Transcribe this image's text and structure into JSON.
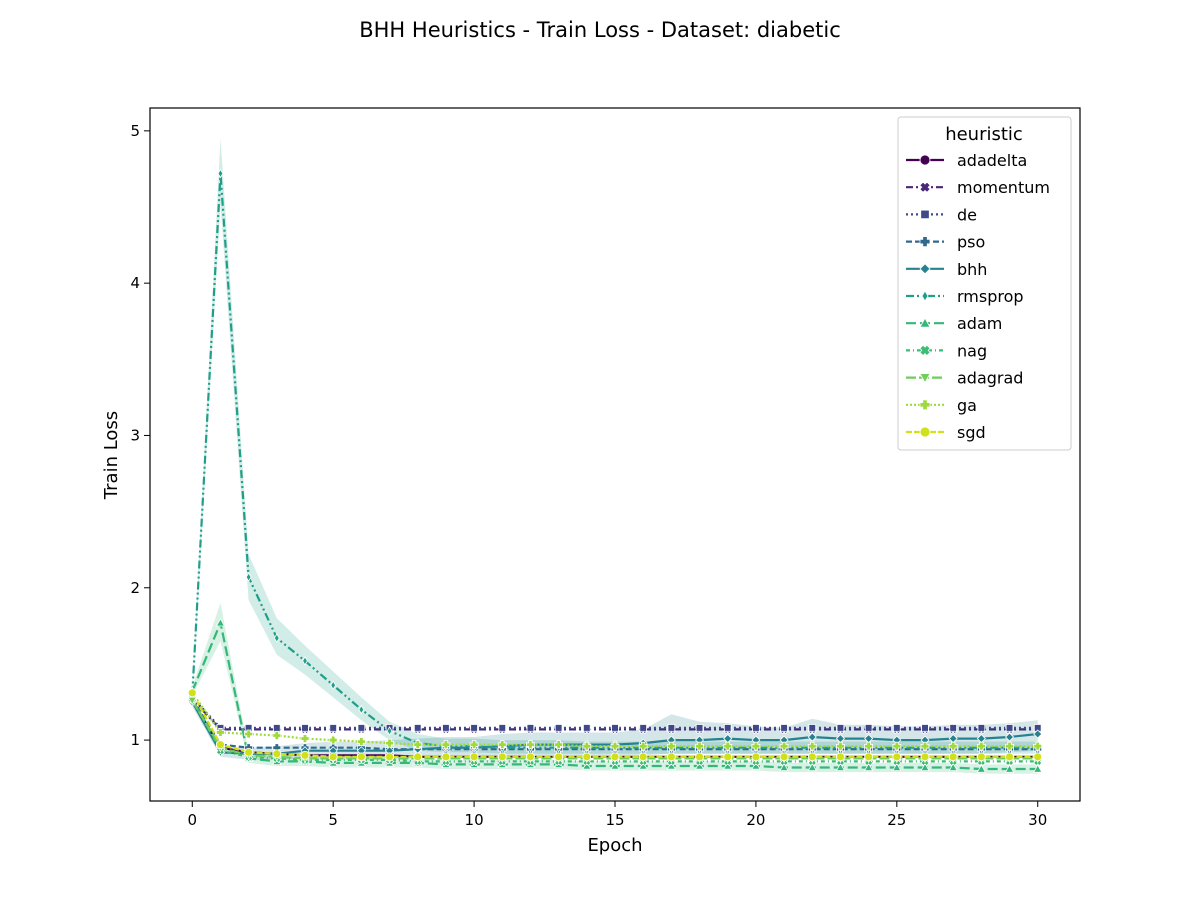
{
  "chart_data": {
    "type": "line",
    "title": "BHH Heuristics - Train Loss - Dataset: diabetic",
    "xlabel": "Epoch",
    "ylabel": "Train Loss",
    "xlim": [
      -1.5,
      31.5
    ],
    "ylim": [
      0.6,
      5.15
    ],
    "xticks": [
      0,
      5,
      10,
      15,
      20,
      25,
      30
    ],
    "yticks": [
      1,
      2,
      3,
      4,
      5
    ],
    "grid": false,
    "legend": {
      "title": "heuristic",
      "position": "top-right"
    },
    "x": [
      0,
      1,
      2,
      3,
      4,
      5,
      6,
      7,
      8,
      9,
      10,
      11,
      12,
      13,
      14,
      15,
      16,
      17,
      18,
      19,
      20,
      21,
      22,
      23,
      24,
      25,
      26,
      27,
      28,
      29,
      30
    ],
    "series": [
      {
        "name": "adadelta",
        "color": "#440154",
        "dash": "",
        "marker": "circle",
        "values": [
          1.26,
          0.95,
          0.92,
          0.91,
          0.9,
          0.9,
          0.9,
          0.9,
          0.89,
          0.89,
          0.89,
          0.89,
          0.89,
          0.89,
          0.89,
          0.89,
          0.89,
          0.89,
          0.89,
          0.89,
          0.89,
          0.89,
          0.89,
          0.89,
          0.89,
          0.89,
          0.89,
          0.89,
          0.89,
          0.89,
          0.89
        ]
      },
      {
        "name": "momentum",
        "color": "#482878",
        "dash": "7,3,2,3",
        "marker": "x",
        "values": [
          1.27,
          1.07,
          1.07,
          1.07,
          1.07,
          1.07,
          1.07,
          1.07,
          1.07,
          1.07,
          1.07,
          1.07,
          1.07,
          1.07,
          1.07,
          1.07,
          1.07,
          1.07,
          1.07,
          1.07,
          1.07,
          1.07,
          1.07,
          1.07,
          1.07,
          1.07,
          1.07,
          1.07,
          1.07,
          1.07,
          1.07
        ]
      },
      {
        "name": "de",
        "color": "#3e4989",
        "dash": "2,3",
        "marker": "square",
        "values": [
          1.28,
          1.08,
          1.08,
          1.08,
          1.08,
          1.08,
          1.08,
          1.08,
          1.08,
          1.08,
          1.08,
          1.08,
          1.08,
          1.08,
          1.08,
          1.08,
          1.08,
          1.08,
          1.08,
          1.08,
          1.08,
          1.08,
          1.08,
          1.08,
          1.08,
          1.08,
          1.08,
          1.08,
          1.08,
          1.08,
          1.08
        ]
      },
      {
        "name": "pso",
        "color": "#31688e",
        "dash": "6,3",
        "marker": "plus",
        "values": [
          1.27,
          0.97,
          0.95,
          0.95,
          0.95,
          0.95,
          0.95,
          0.94,
          0.94,
          0.94,
          0.94,
          0.94,
          0.94,
          0.94,
          0.94,
          0.94,
          0.94,
          0.94,
          0.94,
          0.94,
          0.94,
          0.94,
          0.94,
          0.94,
          0.94,
          0.94,
          0.94,
          0.94,
          0.94,
          0.94,
          0.94
        ]
      },
      {
        "name": "bhh",
        "color": "#26828e",
        "dash": "",
        "marker": "diamond",
        "values": [
          1.25,
          0.92,
          0.91,
          0.91,
          0.93,
          0.93,
          0.93,
          0.93,
          0.94,
          0.95,
          0.95,
          0.96,
          0.97,
          0.97,
          0.97,
          0.97,
          0.98,
          1.0,
          1.0,
          1.01,
          1.0,
          1.0,
          1.02,
          1.01,
          1.01,
          1.0,
          1.0,
          1.01,
          1.01,
          1.02,
          1.04
        ]
      },
      {
        "name": "rmsprop",
        "color": "#1f9e89",
        "dash": "8,3,2,3,2,3",
        "marker": "thin_diamond",
        "values": [
          1.3,
          4.72,
          2.07,
          1.67,
          1.52,
          1.36,
          1.2,
          1.06,
          0.98,
          0.96,
          0.96,
          0.95,
          0.95,
          0.95,
          0.95,
          0.95,
          0.95,
          0.95,
          0.95,
          0.95,
          0.95,
          0.95,
          0.95,
          0.95,
          0.95,
          0.95,
          0.95,
          0.95,
          0.95,
          0.95,
          0.95
        ]
      },
      {
        "name": "adam",
        "color": "#35b779",
        "dash": "10,4",
        "marker": "triangle",
        "values": [
          1.32,
          1.77,
          0.88,
          0.86,
          0.86,
          0.85,
          0.85,
          0.85,
          0.85,
          0.84,
          0.84,
          0.84,
          0.84,
          0.84,
          0.83,
          0.83,
          0.83,
          0.83,
          0.83,
          0.83,
          0.83,
          0.82,
          0.82,
          0.82,
          0.82,
          0.82,
          0.82,
          0.82,
          0.81,
          0.81,
          0.81
        ]
      },
      {
        "name": "nag",
        "color": "#3dbc74",
        "dash": "4,3,1,3",
        "marker": "x",
        "values": [
          1.27,
          0.93,
          0.89,
          0.88,
          0.87,
          0.87,
          0.87,
          0.87,
          0.86,
          0.86,
          0.86,
          0.86,
          0.86,
          0.86,
          0.86,
          0.86,
          0.86,
          0.86,
          0.86,
          0.86,
          0.86,
          0.86,
          0.86,
          0.86,
          0.86,
          0.86,
          0.86,
          0.86,
          0.86,
          0.86,
          0.86
        ]
      },
      {
        "name": "adagrad",
        "color": "#6ece58",
        "dash": "10,3,10,3",
        "marker": "triangle_down",
        "values": [
          1.26,
          0.95,
          0.9,
          0.89,
          0.88,
          0.88,
          0.88,
          0.88,
          0.88,
          0.88,
          0.88,
          0.88,
          0.88,
          0.88,
          0.88,
          0.88,
          0.88,
          0.88,
          0.88,
          0.88,
          0.88,
          0.88,
          0.88,
          0.88,
          0.88,
          0.88,
          0.88,
          0.88,
          0.88,
          0.88,
          0.88
        ]
      },
      {
        "name": "ga",
        "color": "#9fda3a",
        "dash": "2,2",
        "marker": "plus",
        "values": [
          1.31,
          1.05,
          1.04,
          1.03,
          1.01,
          1.0,
          0.99,
          0.98,
          0.97,
          0.97,
          0.97,
          0.97,
          0.97,
          0.97,
          0.96,
          0.96,
          0.96,
          0.96,
          0.96,
          0.96,
          0.96,
          0.96,
          0.96,
          0.96,
          0.96,
          0.96,
          0.96,
          0.96,
          0.96,
          0.96,
          0.96
        ]
      },
      {
        "name": "sgd",
        "color": "#d0e11c",
        "dash": "6,2",
        "marker": "circle",
        "values": [
          1.31,
          0.97,
          0.92,
          0.91,
          0.9,
          0.89,
          0.89,
          0.89,
          0.89,
          0.89,
          0.89,
          0.89,
          0.89,
          0.89,
          0.89,
          0.89,
          0.89,
          0.89,
          0.89,
          0.89,
          0.89,
          0.89,
          0.89,
          0.89,
          0.89,
          0.89,
          0.89,
          0.89,
          0.89,
          0.89,
          0.89
        ]
      }
    ],
    "bands": [
      {
        "series": "rmsprop",
        "color": "#1f9e89",
        "upper": [
          1.33,
          4.95,
          2.22,
          1.8,
          1.62,
          1.45,
          1.28,
          1.12,
          1.04,
          1.01,
          1.01,
          1.0,
          1.0,
          1.0,
          0.99,
          0.99,
          0.99,
          0.99,
          0.99,
          0.99,
          0.99,
          0.99,
          0.99,
          0.99,
          0.99,
          0.99,
          0.99,
          0.99,
          0.99,
          0.99,
          0.99
        ],
        "lower": [
          1.27,
          4.52,
          1.92,
          1.56,
          1.43,
          1.28,
          1.13,
          1.0,
          0.93,
          0.92,
          0.92,
          0.91,
          0.91,
          0.91,
          0.91,
          0.91,
          0.91,
          0.91,
          0.91,
          0.91,
          0.91,
          0.91,
          0.91,
          0.91,
          0.91,
          0.91,
          0.91,
          0.91,
          0.91,
          0.91,
          0.91
        ]
      },
      {
        "series": "adam",
        "color": "#35b779",
        "upper": [
          1.35,
          1.9,
          0.92,
          0.89,
          0.89,
          0.88,
          0.88,
          0.88,
          0.88,
          0.87,
          0.87,
          0.87,
          0.87,
          0.87,
          0.86,
          0.86,
          0.86,
          0.86,
          0.86,
          0.86,
          0.86,
          0.85,
          0.85,
          0.85,
          0.85,
          0.85,
          0.85,
          0.85,
          0.84,
          0.84,
          0.84
        ],
        "lower": [
          1.29,
          1.65,
          0.85,
          0.83,
          0.83,
          0.82,
          0.82,
          0.82,
          0.82,
          0.81,
          0.81,
          0.81,
          0.81,
          0.81,
          0.8,
          0.8,
          0.8,
          0.8,
          0.8,
          0.8,
          0.8,
          0.79,
          0.79,
          0.79,
          0.79,
          0.79,
          0.79,
          0.79,
          0.78,
          0.78,
          0.78
        ]
      },
      {
        "series": "bhh",
        "color": "#26828e",
        "upper": [
          1.28,
          0.96,
          0.95,
          0.96,
          0.98,
          0.99,
          0.99,
          1.0,
          1.01,
          1.02,
          1.02,
          1.04,
          1.05,
          1.05,
          1.05,
          1.05,
          1.07,
          1.17,
          1.12,
          1.11,
          1.09,
          1.08,
          1.14,
          1.1,
          1.1,
          1.09,
          1.09,
          1.1,
          1.1,
          1.11,
          1.13
        ],
        "lower": [
          1.22,
          0.89,
          0.87,
          0.87,
          0.88,
          0.88,
          0.88,
          0.88,
          0.88,
          0.89,
          0.89,
          0.89,
          0.9,
          0.9,
          0.9,
          0.9,
          0.9,
          0.91,
          0.91,
          0.91,
          0.91,
          0.91,
          0.91,
          0.91,
          0.91,
          0.91,
          0.91,
          0.91,
          0.91,
          0.92,
          0.93
        ]
      }
    ]
  }
}
